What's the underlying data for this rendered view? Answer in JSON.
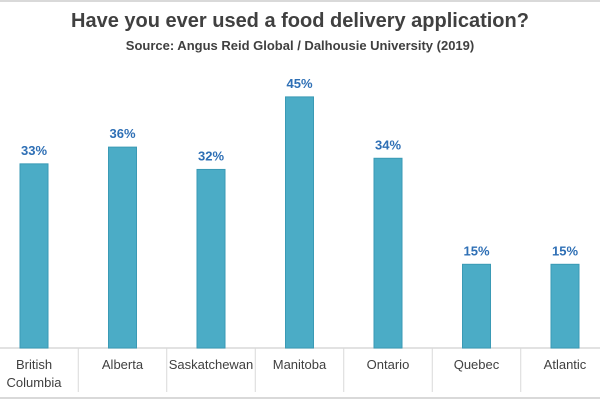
{
  "chart_data": {
    "type": "bar",
    "title": "Have you ever used a food delivery application?",
    "subtitle": "Source: Angus Reid Global / Dalhousie University (2019)",
    "categories": [
      [
        "British",
        "Columbia"
      ],
      [
        "Alberta"
      ],
      [
        "Saskatchewan"
      ],
      [
        "Manitoba"
      ],
      [
        "Ontario"
      ],
      [
        "Quebec"
      ],
      [
        "Atlantic"
      ]
    ],
    "values": [
      33,
      36,
      32,
      45,
      34,
      15,
      15
    ],
    "value_labels": [
      "33%",
      "36%",
      "32%",
      "45%",
      "34%",
      "15%",
      "15%"
    ],
    "xlabel": "",
    "ylabel": "",
    "ylim": [
      0,
      50
    ],
    "grid": false,
    "colors": {
      "bar": "#4bacc6",
      "label": "#2e6fb5",
      "axis": "#d9d9d9"
    }
  }
}
